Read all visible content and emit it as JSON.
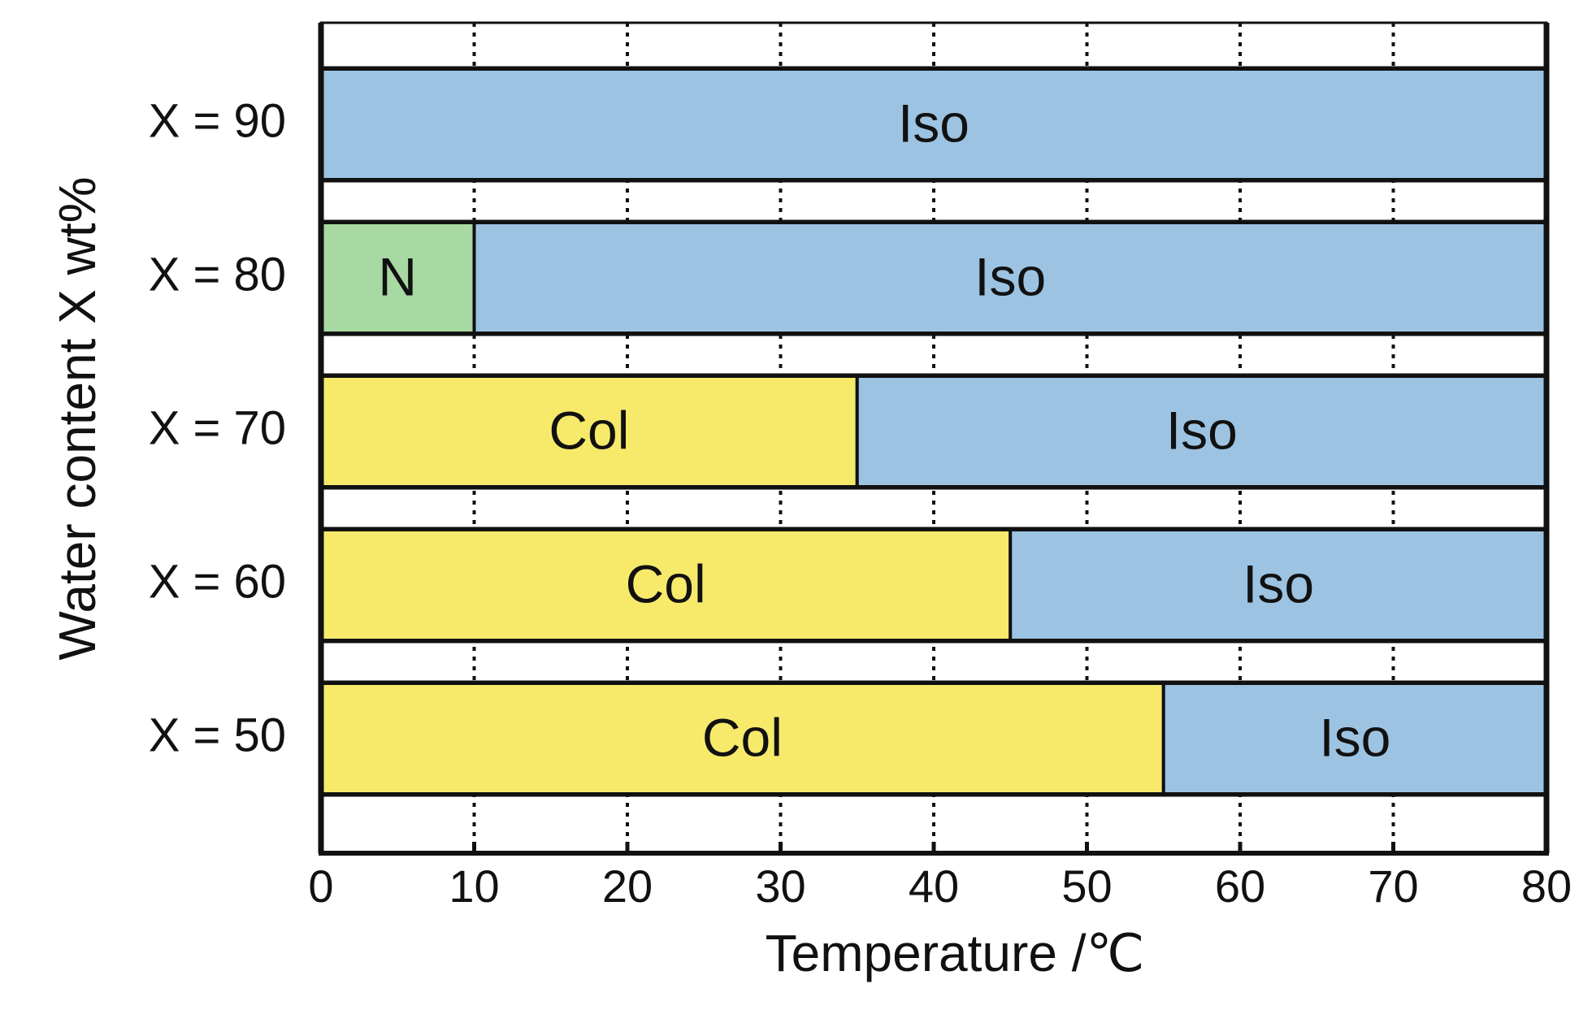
{
  "chart_data": {
    "type": "bar",
    "orientation": "horizontal-stacked",
    "xlabel": "Temperature /℃",
    "ylabel": "Water content X wt%",
    "xlim": [
      0,
      80
    ],
    "xticks": [
      "0",
      "10",
      "20",
      "30",
      "40",
      "50",
      "60",
      "70",
      "80"
    ],
    "grid": "vertical dotted lines at 10–70",
    "rows": [
      {
        "label": "X = 90",
        "segments": [
          {
            "phase": "Iso",
            "from": 0,
            "to": 80
          }
        ]
      },
      {
        "label": "X = 80",
        "segments": [
          {
            "phase": "N",
            "from": 0,
            "to": 10
          },
          {
            "phase": "Iso",
            "from": 10,
            "to": 80
          }
        ]
      },
      {
        "label": "X = 70",
        "segments": [
          {
            "phase": "Col",
            "from": 0,
            "to": 35
          },
          {
            "phase": "Iso",
            "from": 35,
            "to": 80
          }
        ]
      },
      {
        "label": "X = 60",
        "segments": [
          {
            "phase": "Col",
            "from": 0,
            "to": 45
          },
          {
            "phase": "Iso",
            "from": 45,
            "to": 80
          }
        ]
      },
      {
        "label": "X = 50",
        "segments": [
          {
            "phase": "Col",
            "from": 0,
            "to": 55
          },
          {
            "phase": "Iso",
            "from": 55,
            "to": 80
          }
        ]
      }
    ],
    "phase_colors": {
      "Iso": "#9dc3e2",
      "N": "#a9d9a2",
      "Col": "#f7ea6b"
    }
  }
}
